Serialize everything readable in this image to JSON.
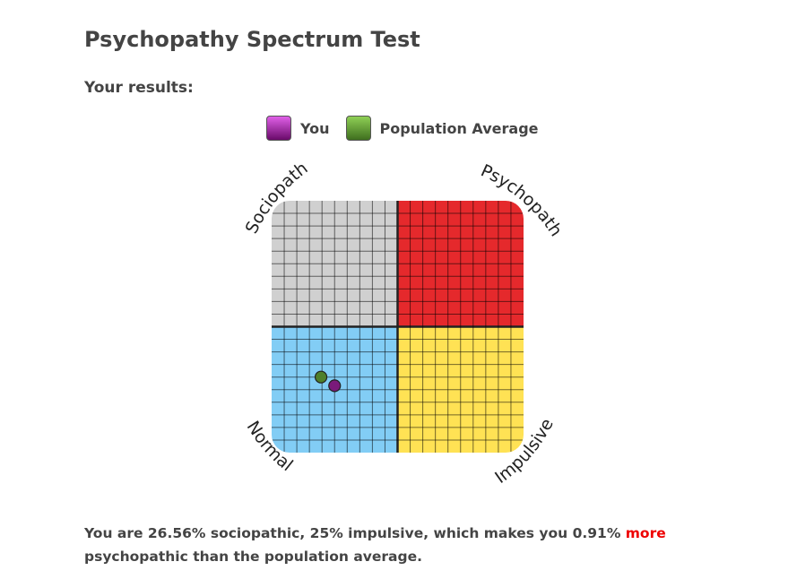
{
  "title": "Psychopathy Spectrum Test",
  "subtitle": "Your results:",
  "legend": {
    "you": "You",
    "population": "Population Average",
    "you_color": "#7a1a7a",
    "population_color": "#4f7f2a"
  },
  "chart": {
    "labels": {
      "top_left": "Sociopath",
      "top_right": "Psychopath",
      "bottom_left": "Normal",
      "bottom_right": "Impulsive"
    },
    "quadrant_colors": {
      "top_left": "#d0d0d0",
      "top_right": "#e5292c",
      "bottom_left": "#82cdf5",
      "bottom_right": "#ffe254"
    },
    "x_axis": "impulsive %",
    "y_axis": "sociopathic %",
    "you": {
      "impulsive": 25,
      "sociopathic": 26.56
    },
    "population": {
      "impulsive": 19.6,
      "sociopathic": 30
    }
  },
  "result": {
    "part1": "You are 26.56% sociopathic, 25% impulsive, which makes you 0.91% ",
    "more": "more",
    "part2": "psychopathic than the population average."
  }
}
